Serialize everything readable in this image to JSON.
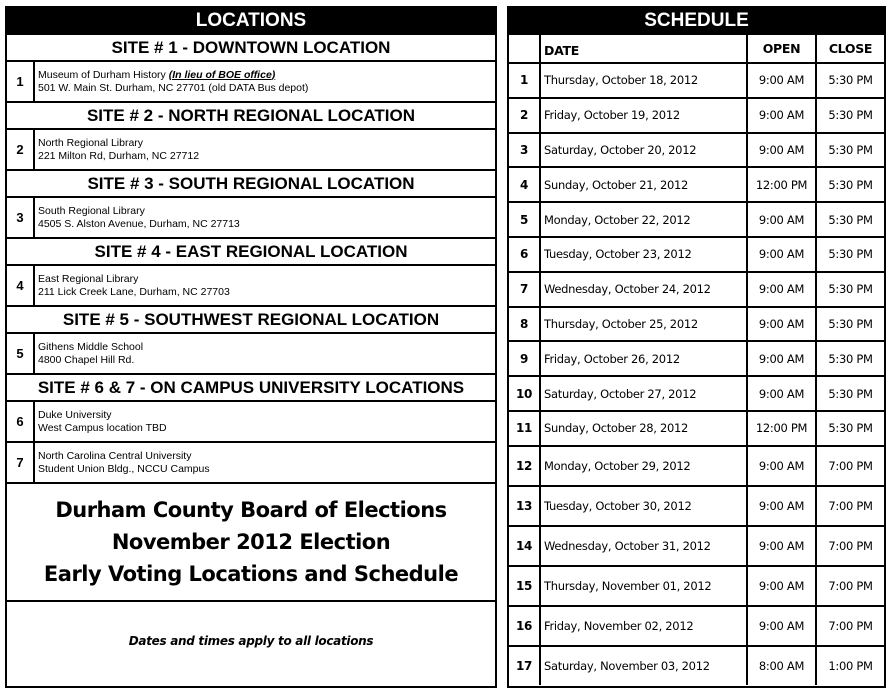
{
  "locations": {
    "header": "LOCATIONS",
    "sites": [
      {
        "heading": "SITE # 1 - DOWNTOWN LOCATION",
        "entries": [
          {
            "num": "1",
            "name": "Museum of Durham History",
            "note": "(In lieu of BOE office)",
            "address": "501 W. Main St. Durham, NC 27701 (old DATA Bus depot)"
          }
        ]
      },
      {
        "heading": "SITE # 2 - NORTH REGIONAL LOCATION",
        "entries": [
          {
            "num": "2",
            "name": "North Regional Library",
            "address": "221 Milton Rd, Durham, NC  27712"
          }
        ]
      },
      {
        "heading": "SITE # 3 - SOUTH REGIONAL LOCATION",
        "entries": [
          {
            "num": "3",
            "name": "South Regional Library",
            "address": "4505 S. Alston Avenue, Durham, NC  27713"
          }
        ]
      },
      {
        "heading": "SITE # 4 - EAST REGIONAL LOCATION",
        "entries": [
          {
            "num": "4",
            "name": "East Regional Library",
            "address": "211 Lick Creek Lane, Durham, NC  27703"
          }
        ]
      },
      {
        "heading": "SITE # 5 - SOUTHWEST REGIONAL LOCATION",
        "entries": [
          {
            "num": "5",
            "name": "Githens Middle School",
            "address": "4800 Chapel Hill Rd."
          }
        ]
      },
      {
        "heading": "SITE # 6 & 7 - ON CAMPUS UNIVERSITY LOCATIONS",
        "entries": [
          {
            "num": "6",
            "name": "Duke University",
            "address": "West Campus location TBD"
          },
          {
            "num": "7",
            "name": "North Carolina Central University",
            "address": "Student Union Bldg., NCCU Campus"
          }
        ]
      }
    ],
    "title_lines": [
      "Durham County Board of Elections",
      "November 2012 Election",
      "Early Voting Locations and Schedule"
    ],
    "footnote": "Dates and times apply to all locations"
  },
  "schedule": {
    "header": "SCHEDULE",
    "columns": [
      "",
      "DATE",
      "OPEN",
      "CLOSE"
    ],
    "rows": [
      [
        "1",
        "Thursday, October 18, 2012",
        "9:00 AM",
        "5:30 PM"
      ],
      [
        "2",
        "Friday, October 19, 2012",
        "9:00 AM",
        "5:30 PM"
      ],
      [
        "3",
        "Saturday, October 20, 2012",
        "9:00 AM",
        "5:30 PM"
      ],
      [
        "4",
        "Sunday, October 21, 2012",
        "12:00 PM",
        "5:30 PM"
      ],
      [
        "5",
        "Monday, October 22, 2012",
        "9:00 AM",
        "5:30 PM"
      ],
      [
        "6",
        "Tuesday, October 23, 2012",
        "9:00 AM",
        "5:30 PM"
      ],
      [
        "7",
        "Wednesday, October 24, 2012",
        "9:00 AM",
        "5:30 PM"
      ],
      [
        "8",
        "Thursday, October 25, 2012",
        "9:00 AM",
        "5:30 PM"
      ],
      [
        "9",
        "Friday, October 26, 2012",
        "9:00 AM",
        "5:30 PM"
      ],
      [
        "10",
        "Saturday, October 27, 2012",
        "9:00 AM",
        "5:30 PM"
      ],
      [
        "11",
        "Sunday, October 28, 2012",
        "12:00 PM",
        "5:30 PM"
      ],
      [
        "12",
        "Monday, October 29, 2012",
        "9:00 AM",
        "7:00 PM"
      ],
      [
        "13",
        "Tuesday, October 30, 2012",
        "9:00 AM",
        "7:00 PM"
      ],
      [
        "14",
        "Wednesday, October 31, 2012",
        "9:00 AM",
        "7:00 PM"
      ],
      [
        "15",
        "Thursday, November 01, 2012",
        "9:00 AM",
        "7:00 PM"
      ],
      [
        "16",
        "Friday, November 02, 2012",
        "9:00 AM",
        "7:00 PM"
      ],
      [
        "17",
        "Saturday, November 03, 2012",
        "8:00 AM",
        "1:00 PM"
      ]
    ]
  }
}
